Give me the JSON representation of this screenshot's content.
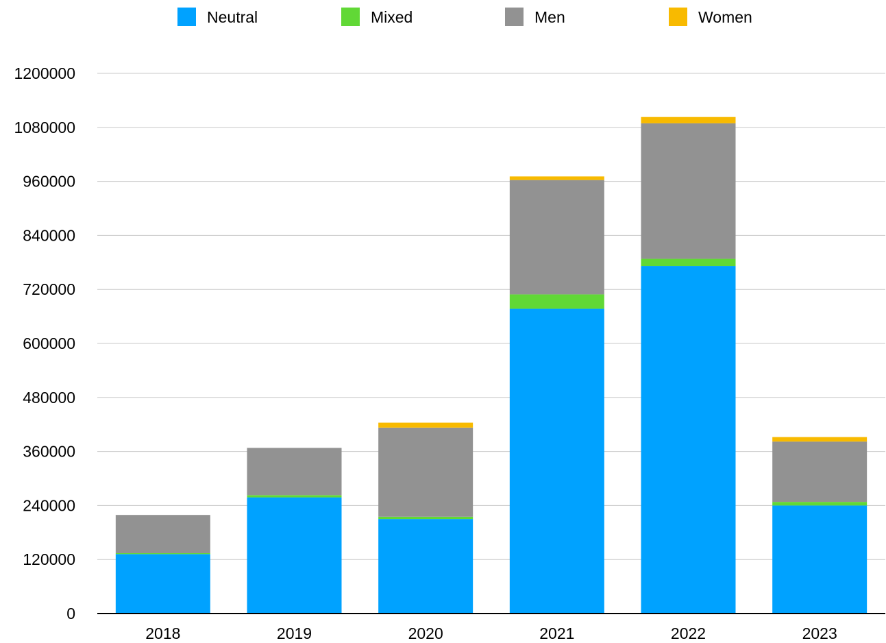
{
  "chart_data": {
    "type": "bar",
    "stacked": true,
    "title": "",
    "xlabel": "",
    "ylabel": "",
    "categories": [
      "2018",
      "2019",
      "2020",
      "2021",
      "2022",
      "2023"
    ],
    "series": [
      {
        "name": "Neutral",
        "color": "#00a2ff",
        "values": [
          132000,
          258000,
          210000,
          677000,
          772000,
          240000
        ]
      },
      {
        "name": "Mixed",
        "color": "#61d836",
        "values": [
          2000,
          5000,
          5000,
          32000,
          16000,
          8000
        ]
      },
      {
        "name": "Men",
        "color": "#929292",
        "values": [
          85000,
          105000,
          198000,
          254000,
          301000,
          134000
        ]
      },
      {
        "name": "Women",
        "color": "#f8ba00",
        "values": [
          0,
          0,
          11000,
          8000,
          14000,
          10000
        ]
      }
    ],
    "ylim": [
      0,
      1200000
    ],
    "yticks": [
      "0",
      "120000",
      "240000",
      "360000",
      "480000",
      "600000",
      "720000",
      "840000",
      "960000",
      "1080000",
      "1200000"
    ],
    "grid": true,
    "legend_position": "top"
  }
}
